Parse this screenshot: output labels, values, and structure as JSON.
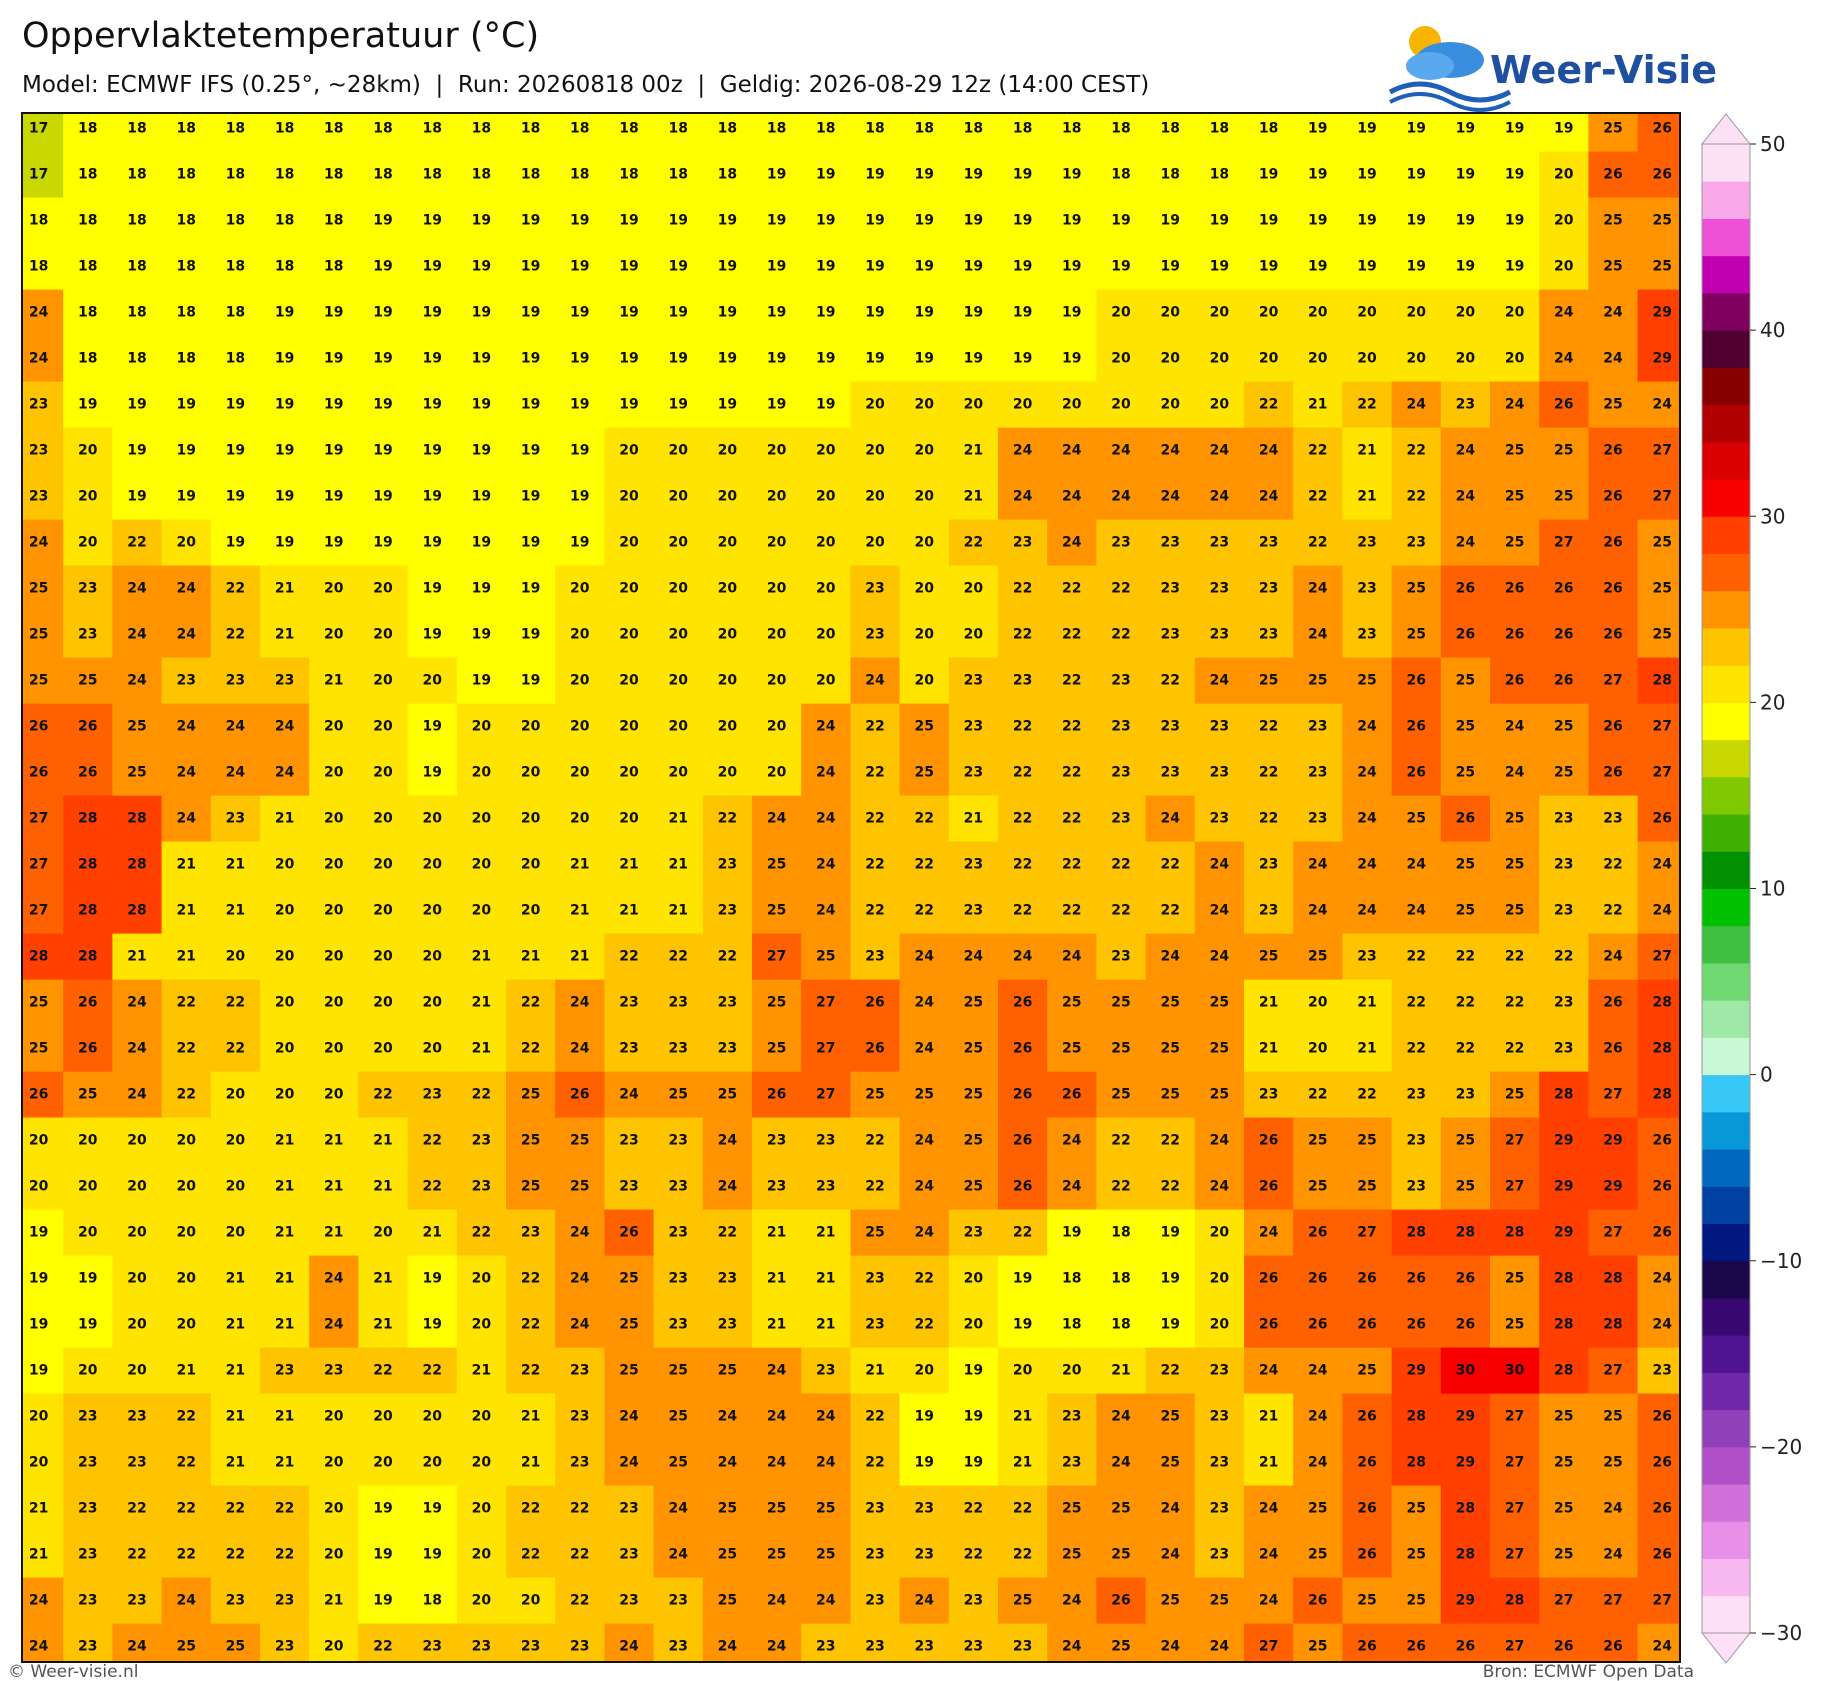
{
  "title": "Oppervlaktetemperatuur (°C)",
  "subtitle": "Model: ECMWF IFS (0.25°, ~28km)  |  Run: 20260818 00z  |  Geldig: 2026-08-29 12z (14:00 CEST)",
  "logo": "Weer-Visie",
  "footer_left": "© Weer-visie.nl",
  "footer_right": "Bron: ECMWF Open Data",
  "grid": {
    "rows": [
      [
        17,
        18,
        18,
        18,
        18,
        18,
        18,
        18,
        18,
        18,
        18,
        18,
        18,
        18,
        18,
        18,
        18,
        18,
        18,
        18,
        18,
        18,
        18,
        18,
        18,
        18,
        19,
        19,
        19,
        19,
        19,
        19,
        25,
        26
      ],
      [
        17,
        18,
        18,
        18,
        18,
        18,
        18,
        18,
        18,
        18,
        18,
        18,
        18,
        18,
        18,
        19,
        19,
        19,
        19,
        19,
        19,
        19,
        18,
        18,
        18,
        19,
        19,
        19,
        19,
        19,
        19,
        20,
        26,
        26
      ],
      [
        18,
        18,
        18,
        18,
        18,
        18,
        18,
        19,
        19,
        19,
        19,
        19,
        19,
        19,
        19,
        19,
        19,
        19,
        19,
        19,
        19,
        19,
        19,
        19,
        19,
        19,
        19,
        19,
        19,
        19,
        19,
        20,
        25,
        25
      ],
      [
        18,
        18,
        18,
        18,
        18,
        18,
        18,
        19,
        19,
        19,
        19,
        19,
        19,
        19,
        19,
        19,
        19,
        19,
        19,
        19,
        19,
        19,
        19,
        19,
        19,
        19,
        19,
        19,
        19,
        19,
        19,
        20,
        25,
        25
      ],
      [
        24,
        18,
        18,
        18,
        18,
        19,
        19,
        19,
        19,
        19,
        19,
        19,
        19,
        19,
        19,
        19,
        19,
        19,
        19,
        19,
        19,
        19,
        20,
        20,
        20,
        20,
        20,
        20,
        20,
        20,
        20,
        24,
        24,
        29
      ],
      [
        24,
        18,
        18,
        18,
        18,
        19,
        19,
        19,
        19,
        19,
        19,
        19,
        19,
        19,
        19,
        19,
        19,
        19,
        19,
        19,
        19,
        19,
        20,
        20,
        20,
        20,
        20,
        20,
        20,
        20,
        20,
        24,
        24,
        29
      ],
      [
        23,
        19,
        19,
        19,
        19,
        19,
        19,
        19,
        19,
        19,
        19,
        19,
        19,
        19,
        19,
        19,
        19,
        20,
        20,
        20,
        20,
        20,
        20,
        20,
        20,
        22,
        21,
        22,
        24,
        23,
        24,
        26,
        25,
        24
      ],
      [
        23,
        20,
        19,
        19,
        19,
        19,
        19,
        19,
        19,
        19,
        19,
        19,
        20,
        20,
        20,
        20,
        20,
        20,
        20,
        21,
        24,
        24,
        24,
        24,
        24,
        24,
        22,
        21,
        22,
        24,
        25,
        25,
        26,
        27
      ],
      [
        23,
        20,
        19,
        19,
        19,
        19,
        19,
        19,
        19,
        19,
        19,
        19,
        20,
        20,
        20,
        20,
        20,
        20,
        20,
        21,
        24,
        24,
        24,
        24,
        24,
        24,
        22,
        21,
        22,
        24,
        25,
        25,
        26,
        27
      ],
      [
        24,
        20,
        22,
        20,
        19,
        19,
        19,
        19,
        19,
        19,
        19,
        19,
        20,
        20,
        20,
        20,
        20,
        20,
        20,
        22,
        23,
        24,
        23,
        23,
        23,
        23,
        22,
        23,
        23,
        24,
        25,
        27,
        26,
        25
      ],
      [
        25,
        23,
        24,
        24,
        22,
        21,
        20,
        20,
        19,
        19,
        19,
        20,
        20,
        20,
        20,
        20,
        20,
        23,
        20,
        20,
        22,
        22,
        22,
        23,
        23,
        23,
        24,
        23,
        25,
        26,
        26,
        26,
        26,
        25
      ],
      [
        25,
        23,
        24,
        24,
        22,
        21,
        20,
        20,
        19,
        19,
        19,
        20,
        20,
        20,
        20,
        20,
        20,
        23,
        20,
        20,
        22,
        22,
        22,
        23,
        23,
        23,
        24,
        23,
        25,
        26,
        26,
        26,
        26,
        25
      ],
      [
        25,
        25,
        24,
        23,
        23,
        23,
        21,
        20,
        20,
        19,
        19,
        20,
        20,
        20,
        20,
        20,
        20,
        24,
        20,
        23,
        23,
        22,
        23,
        22,
        24,
        25,
        25,
        25,
        26,
        25,
        26,
        26,
        27,
        28
      ],
      [
        26,
        26,
        25,
        24,
        24,
        24,
        20,
        20,
        19,
        20,
        20,
        20,
        20,
        20,
        20,
        20,
        24,
        22,
        25,
        23,
        22,
        22,
        23,
        23,
        23,
        22,
        23,
        24,
        26,
        25,
        24,
        25,
        26,
        27
      ],
      [
        26,
        26,
        25,
        24,
        24,
        24,
        20,
        20,
        19,
        20,
        20,
        20,
        20,
        20,
        20,
        20,
        24,
        22,
        25,
        23,
        22,
        22,
        23,
        23,
        23,
        22,
        23,
        24,
        26,
        25,
        24,
        25,
        26,
        27
      ],
      [
        27,
        28,
        28,
        24,
        23,
        21,
        20,
        20,
        20,
        20,
        20,
        20,
        20,
        21,
        22,
        24,
        24,
        22,
        22,
        21,
        22,
        22,
        23,
        24,
        23,
        22,
        23,
        24,
        25,
        26,
        25,
        23,
        23,
        26
      ],
      [
        27,
        28,
        28,
        21,
        21,
        20,
        20,
        20,
        20,
        20,
        20,
        21,
        21,
        21,
        23,
        25,
        24,
        22,
        22,
        23,
        22,
        22,
        22,
        22,
        24,
        23,
        24,
        24,
        24,
        25,
        25,
        23,
        22,
        24
      ],
      [
        27,
        28,
        28,
        21,
        21,
        20,
        20,
        20,
        20,
        20,
        20,
        21,
        21,
        21,
        23,
        25,
        24,
        22,
        22,
        23,
        22,
        22,
        22,
        22,
        24,
        23,
        24,
        24,
        24,
        25,
        25,
        23,
        22,
        24
      ],
      [
        28,
        28,
        21,
        21,
        20,
        20,
        20,
        20,
        20,
        21,
        21,
        21,
        22,
        22,
        22,
        27,
        25,
        23,
        24,
        24,
        24,
        24,
        23,
        24,
        24,
        25,
        25,
        23,
        22,
        22,
        22,
        22,
        24,
        27
      ],
      [
        25,
        26,
        24,
        22,
        22,
        20,
        20,
        20,
        20,
        21,
        22,
        24,
        23,
        23,
        23,
        25,
        27,
        26,
        24,
        25,
        26,
        25,
        25,
        25,
        25,
        21,
        20,
        21,
        22,
        22,
        22,
        23,
        26,
        28
      ],
      [
        25,
        26,
        24,
        22,
        22,
        20,
        20,
        20,
        20,
        21,
        22,
        24,
        23,
        23,
        23,
        25,
        27,
        26,
        24,
        25,
        26,
        25,
        25,
        25,
        25,
        21,
        20,
        21,
        22,
        22,
        22,
        23,
        26,
        28
      ],
      [
        26,
        25,
        24,
        22,
        20,
        20,
        20,
        22,
        23,
        22,
        25,
        26,
        24,
        25,
        25,
        26,
        27,
        25,
        25,
        25,
        26,
        26,
        25,
        25,
        25,
        23,
        22,
        22,
        23,
        23,
        25,
        28,
        27,
        28
      ],
      [
        20,
        20,
        20,
        20,
        20,
        21,
        21,
        21,
        22,
        23,
        25,
        25,
        23,
        23,
        24,
        23,
        23,
        22,
        24,
        25,
        26,
        24,
        22,
        22,
        24,
        26,
        25,
        25,
        23,
        25,
        27,
        29,
        29,
        26
      ],
      [
        20,
        20,
        20,
        20,
        20,
        21,
        21,
        21,
        22,
        23,
        25,
        25,
        23,
        23,
        24,
        23,
        23,
        22,
        24,
        25,
        26,
        24,
        22,
        22,
        24,
        26,
        25,
        25,
        23,
        25,
        27,
        29,
        29,
        26
      ],
      [
        19,
        20,
        20,
        20,
        20,
        21,
        21,
        20,
        21,
        22,
        23,
        24,
        26,
        23,
        22,
        21,
        21,
        25,
        24,
        23,
        22,
        19,
        18,
        19,
        20,
        24,
        26,
        27,
        28,
        28,
        28,
        29,
        27,
        26
      ],
      [
        19,
        19,
        20,
        20,
        21,
        21,
        24,
        21,
        19,
        20,
        22,
        24,
        25,
        23,
        23,
        21,
        21,
        23,
        22,
        20,
        19,
        18,
        18,
        19,
        20,
        26,
        26,
        26,
        26,
        26,
        25,
        28,
        28,
        24
      ],
      [
        19,
        19,
        20,
        20,
        21,
        21,
        24,
        21,
        19,
        20,
        22,
        24,
        25,
        23,
        23,
        21,
        21,
        23,
        22,
        20,
        19,
        18,
        18,
        19,
        20,
        26,
        26,
        26,
        26,
        26,
        25,
        28,
        28,
        24
      ],
      [
        19,
        20,
        20,
        21,
        21,
        23,
        23,
        22,
        22,
        21,
        22,
        23,
        25,
        25,
        25,
        24,
        23,
        21,
        20,
        19,
        20,
        20,
        21,
        22,
        23,
        24,
        24,
        25,
        29,
        30,
        30,
        28,
        27,
        23
      ],
      [
        20,
        23,
        23,
        22,
        21,
        21,
        20,
        20,
        20,
        20,
        21,
        23,
        24,
        25,
        24,
        24,
        24,
        22,
        19,
        19,
        21,
        23,
        24,
        25,
        23,
        21,
        24,
        26,
        28,
        29,
        27,
        25,
        25,
        26
      ],
      [
        20,
        23,
        23,
        22,
        21,
        21,
        20,
        20,
        20,
        20,
        21,
        23,
        24,
        25,
        24,
        24,
        24,
        22,
        19,
        19,
        21,
        23,
        24,
        25,
        23,
        21,
        24,
        26,
        28,
        29,
        27,
        25,
        25,
        26
      ],
      [
        21,
        23,
        22,
        22,
        22,
        22,
        20,
        19,
        19,
        20,
        22,
        22,
        23,
        24,
        25,
        25,
        25,
        23,
        23,
        22,
        22,
        25,
        25,
        24,
        23,
        24,
        25,
        26,
        25,
        28,
        27,
        25,
        24,
        26
      ],
      [
        21,
        23,
        22,
        22,
        22,
        22,
        20,
        19,
        19,
        20,
        22,
        22,
        23,
        24,
        25,
        25,
        25,
        23,
        23,
        22,
        22,
        25,
        25,
        24,
        23,
        24,
        25,
        26,
        25,
        28,
        27,
        25,
        24,
        26
      ],
      [
        24,
        23,
        23,
        24,
        23,
        23,
        21,
        19,
        18,
        20,
        20,
        22,
        23,
        23,
        25,
        24,
        24,
        23,
        24,
        23,
        25,
        24,
        26,
        25,
        25,
        24,
        26,
        25,
        25,
        29,
        28,
        27,
        27,
        27
      ],
      [
        24,
        23,
        24,
        25,
        25,
        23,
        20,
        22,
        23,
        23,
        23,
        23,
        24,
        23,
        24,
        24,
        23,
        23,
        23,
        23,
        23,
        24,
        25,
        24,
        24,
        27,
        25,
        26,
        26,
        26,
        27,
        26,
        26,
        24
      ]
    ]
  },
  "colorbar": {
    "lim": [
      -30,
      50
    ],
    "ticks": [
      50,
      40,
      30,
      20,
      10,
      0,
      {
        "value": -10,
        "label": "−10"
      },
      {
        "value": -20,
        "label": "−20"
      },
      {
        "value": -30,
        "label": "−30"
      }
    ],
    "colors": [
      "#fde0f8",
      "#f8b8f0",
      "#e890e8",
      "#d070d8",
      "#b050c8",
      "#9040b8",
      "#7028a8",
      "#501490",
      "#380870",
      "#180848",
      "#001880",
      "#0040a0",
      "#0068c0",
      "#0898d8",
      "#38c8f8",
      "#c8f8d8",
      "#a0e8a8",
      "#70d870",
      "#40c040",
      "#00c000",
      "#009000",
      "#40b000",
      "#80c800",
      "#c8d800",
      "#ffff00",
      "#ffe400",
      "#ffc400",
      "#ff9400",
      "#ff6000",
      "#ff4000",
      "#f80000",
      "#d80000",
      "#b00000",
      "#880000",
      "#500030",
      "#800060",
      "#c000b0",
      "#f050d8",
      "#f8a8e8",
      "#fde0f5"
    ]
  }
}
